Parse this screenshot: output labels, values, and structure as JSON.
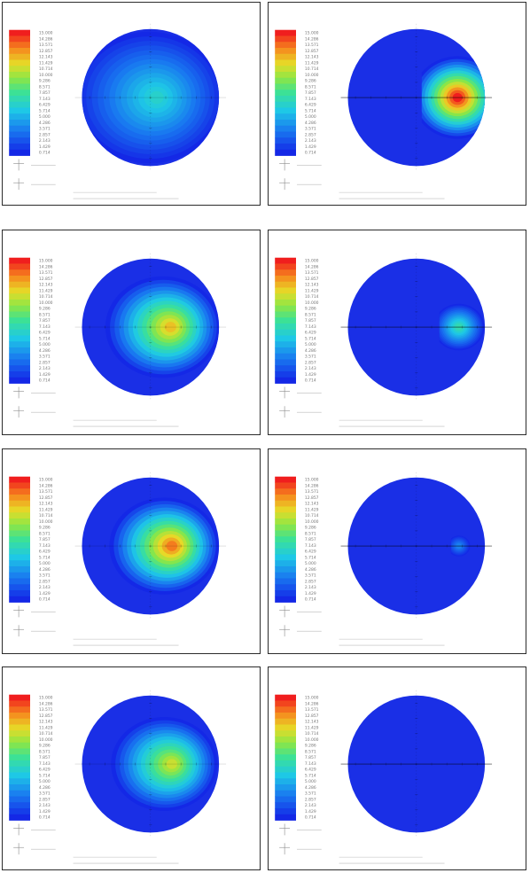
{
  "legend_labels": [
    "15.000",
    "14.286",
    "13.571",
    "12.857",
    "12.143",
    "11.429",
    "10.714",
    "10.000",
    "9.286",
    "8.571",
    "7.857",
    "7.143",
    "6.429",
    "5.714",
    "5.000",
    "4.286",
    "3.571",
    "2.857",
    "2.143",
    "1.429",
    "0.714"
  ],
  "colors": {
    "low": "#1a2fe6",
    "high": "#f31e1e",
    "ring": "#0f23df",
    "border": "#2b2b2b",
    "axis": "#000000"
  },
  "panels": [
    {
      "id": "r1-left",
      "peak": 0.4,
      "spread": 0.85,
      "cx": 0.1,
      "half": false
    },
    {
      "id": "r1-right",
      "peak": 1.0,
      "spread": 0.55,
      "cx": 0.6,
      "half": true
    },
    {
      "id": "r2-left",
      "peak": 0.78,
      "spread": 0.65,
      "cx": 0.3,
      "half": false
    },
    {
      "id": "r2-right",
      "peak": 0.45,
      "spread": 0.3,
      "cx": 0.62,
      "half": true
    },
    {
      "id": "r3-left",
      "peak": 0.88,
      "spread": 0.62,
      "cx": 0.32,
      "half": false
    },
    {
      "id": "r3-right",
      "peak": 0.2,
      "spread": 0.12,
      "cx": 0.62,
      "half": true
    },
    {
      "id": "r4-left",
      "peak": 0.7,
      "spread": 0.6,
      "cx": 0.32,
      "half": false
    },
    {
      "id": "r4-right",
      "peak": 0.0,
      "spread": 0.0,
      "cx": 0.6,
      "half": true
    }
  ]
}
